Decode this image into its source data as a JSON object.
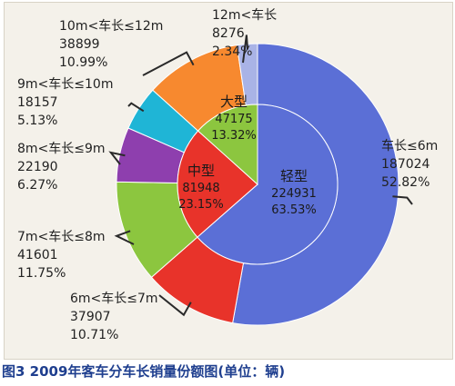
{
  "caption": "图3 2009年客车分车长销量份额图(单位：辆)",
  "chart_data": {
    "type": "pie",
    "title": "",
    "inner_ring": [
      {
        "label": "轻型",
        "value": 224931,
        "percent": "63.53%",
        "color": "#5b6fd6"
      },
      {
        "label": "中型",
        "value": 81948,
        "percent": "23.15%",
        "color": "#e8332a"
      },
      {
        "label": "大型",
        "value": 47175,
        "percent": "13.32%",
        "color": "#8cc63f"
      }
    ],
    "outer_ring": [
      {
        "label": "车长≤6m",
        "value": 187024,
        "percent": "52.82%",
        "color": "#5b6fd6"
      },
      {
        "label": "6m<车长≤7m",
        "value": 37907,
        "percent": "10.71%",
        "color": "#e8332a"
      },
      {
        "label": "7m<车长≤8m",
        "value": 41601,
        "percent": "11.75%",
        "color": "#8cc63f"
      },
      {
        "label": "8m<车长≤9m",
        "value": 22190,
        "percent": "6.27%",
        "color": "#8e3fae"
      },
      {
        "label": "9m<车长≤10m",
        "value": 18157,
        "percent": "5.13%",
        "color": "#1fb5d6"
      },
      {
        "label": "10m<车长≤12m",
        "value": 38899,
        "percent": "10.99%",
        "color": "#f7892f"
      },
      {
        "label": "12m<车长",
        "value": 8276,
        "percent": "2.34%",
        "color": "#a9b3e6"
      }
    ]
  }
}
